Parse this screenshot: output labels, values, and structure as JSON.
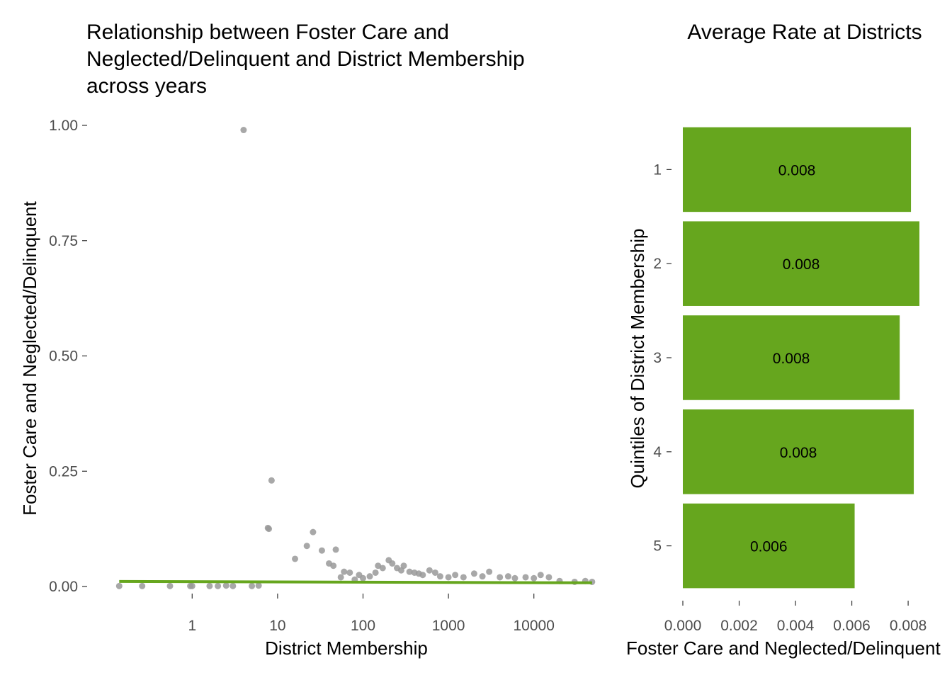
{
  "colors": {
    "accent": "#66a61e",
    "points": "#999999",
    "tick_text": "#4d4d4d"
  },
  "chart_data": [
    {
      "type": "scatter",
      "title_lines": [
        "Relationship between Foster Care and",
        "Neglected/Delinquent and District Membership",
        "across years"
      ],
      "xlabel": "District Membership",
      "ylabel": "Foster Care and Neglected/Delinquent",
      "x_scale": "log10",
      "xlim": [
        0.07,
        50000
      ],
      "ylim": [
        0,
        1
      ],
      "x_ticks": [
        1,
        10,
        100,
        1000,
        10000
      ],
      "x_tick_labels": [
        "1",
        "10",
        "100",
        "1000",
        "10000"
      ],
      "y_ticks": [
        0,
        0.25,
        0.5,
        0.75,
        1
      ],
      "y_tick_labels": [
        "0.00",
        "0.25",
        "0.50",
        "0.75",
        "1.00"
      ],
      "grid": false,
      "series": [
        {
          "x": [
            0.14,
            0.26,
            0.55,
            0.95,
            1.0,
            1.6,
            2.0,
            2.5,
            3.0,
            4.0,
            5.0,
            6.0,
            7.7,
            7.9,
            8.5,
            16,
            22,
            26,
            33,
            40,
            45,
            48,
            55,
            60,
            70,
            80,
            90,
            100,
            120,
            140,
            150,
            170,
            200,
            220,
            250,
            280,
            300,
            350,
            400,
            450,
            500,
            600,
            700,
            800,
            1000,
            1200,
            1500,
            2000,
            2500,
            3000,
            4000,
            5000,
            6000,
            8000,
            10000,
            12000,
            15000,
            20000,
            30000,
            40000,
            48000
          ],
          "y": [
            0.001,
            0.001,
            0.001,
            0.001,
            0.001,
            0.001,
            0.001,
            0.002,
            0.001,
            0.99,
            0.001,
            0.002,
            0.127,
            0.125,
            0.23,
            0.06,
            0.088,
            0.118,
            0.078,
            0.05,
            0.045,
            0.08,
            0.02,
            0.032,
            0.03,
            0.015,
            0.025,
            0.018,
            0.022,
            0.03,
            0.045,
            0.04,
            0.057,
            0.05,
            0.04,
            0.035,
            0.045,
            0.032,
            0.03,
            0.028,
            0.025,
            0.035,
            0.03,
            0.022,
            0.02,
            0.025,
            0.02,
            0.028,
            0.022,
            0.032,
            0.02,
            0.022,
            0.018,
            0.02,
            0.018,
            0.025,
            0.02,
            0.012,
            0.01,
            0.012,
            0.01
          ]
        }
      ],
      "trend_line": {
        "x": [
          0.14,
          48000
        ],
        "y": [
          0.011,
          0.008
        ]
      }
    },
    {
      "type": "bar",
      "orientation": "horizontal",
      "title": "Average Rate at Districts",
      "xlabel": "Foster Care and Neglected/Delinquent",
      "ylabel": "Quintiles of District Membership",
      "categories": [
        "1",
        "2",
        "3",
        "4",
        "5"
      ],
      "values": [
        0.0081,
        0.0084,
        0.0077,
        0.0082,
        0.0061
      ],
      "data_labels": [
        "0.008",
        "0.008",
        "0.008",
        "0.008",
        "0.006"
      ],
      "xlim": [
        0,
        0.0084
      ],
      "x_ticks": [
        0,
        0.002,
        0.004,
        0.006,
        0.008
      ],
      "x_tick_labels": [
        "0.000",
        "0.002",
        "0.004",
        "0.006",
        "0.008"
      ],
      "grid": false
    }
  ]
}
